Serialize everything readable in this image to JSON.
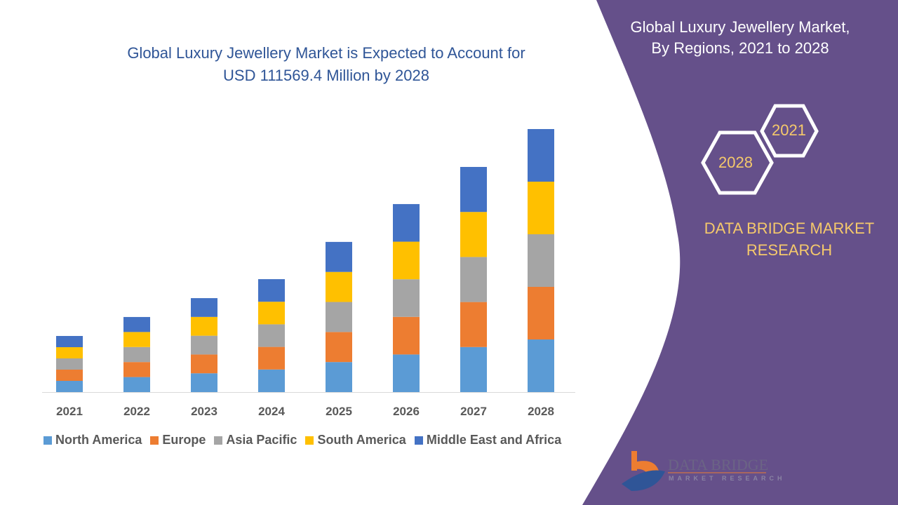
{
  "title": "Global Luxury Jewellery Market is Expected to Account for USD 111569.4 Million by 2028",
  "title_line1": "Global Luxury Jewellery Market is Expected to Account for",
  "title_line2": "USD 111569.4 Million by 2028",
  "side_panel": {
    "title_line1": "Global Luxury Jewellery Market,",
    "title_line2": "By Regions, 2021 to 2028",
    "hex_start": "2021",
    "hex_end": "2028",
    "brand_line1": "DATA BRIDGE MARKET",
    "brand_line2": "RESEARCH",
    "logo_text": "DATA BRIDGE",
    "logo_subtext": "MARKET RESEARCH",
    "panel_color": "#65508a",
    "accent_color": "#f5c96b"
  },
  "chart_data": {
    "type": "bar",
    "stacked": true,
    "categories": [
      "2021",
      "2022",
      "2023",
      "2024",
      "2025",
      "2026",
      "2027",
      "2028"
    ],
    "series": [
      {
        "name": "North America",
        "color": "#5b9bd5",
        "values": [
          4760,
          6370,
          7970,
          9580,
          12740,
          15950,
          19100,
          22314
        ]
      },
      {
        "name": "Europe",
        "color": "#ed7d31",
        "values": [
          4760,
          6370,
          7970,
          9580,
          12740,
          15950,
          19100,
          22314
        ]
      },
      {
        "name": "Asia Pacific",
        "color": "#a5a5a5",
        "values": [
          4760,
          6370,
          7970,
          9580,
          12740,
          15950,
          19100,
          22314
        ]
      },
      {
        "name": "South America",
        "color": "#ffc000",
        "values": [
          4760,
          6370,
          7970,
          9580,
          12740,
          15950,
          19100,
          22314
        ]
      },
      {
        "name": "Middle East and Africa",
        "color": "#4472c4",
        "values": [
          4760,
          6370,
          7970,
          9580,
          12740,
          15950,
          19100,
          22314
        ]
      }
    ],
    "ylim": [
      0,
      111569.4
    ],
    "legend": "bottom",
    "grid": false,
    "y_axis_shown": false
  }
}
